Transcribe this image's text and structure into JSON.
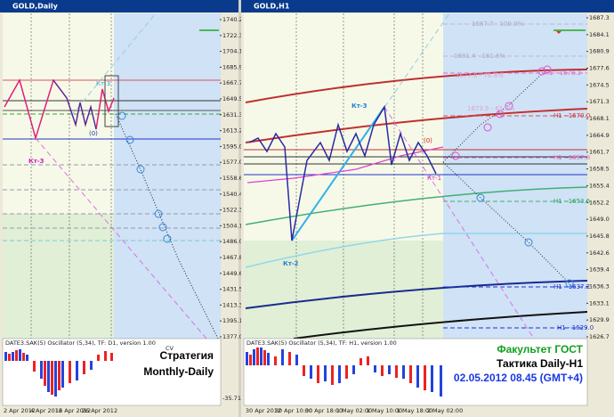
{
  "left_window": {
    "title": "GOLD,Daily",
    "y_axis": [
      "1740.2",
      "1722.3",
      "1704.1",
      "1685.9",
      "1667.7",
      "1649.5",
      "1631.3",
      "1613.2",
      "1595.0",
      "1577.0",
      "1558.6",
      "1540.4",
      "1522.3",
      "1504.1",
      "1486.0",
      "1467.8",
      "1449.6",
      "1431.5",
      "1413.3",
      "1395.1",
      "1377.0"
    ],
    "x_axis": [
      "2 Apr 2012",
      "4 Apr 2012",
      "16 Apr 2012",
      "26 Apr 2012"
    ],
    "labels": {
      "kt3": "Кт-3",
      "kt3_top": "Кт-3",
      "zero": "(0)"
    },
    "oscillator": {
      "label": "DATE3.SAK(5) Oscillator (5,34), TF: D1, version 1.00",
      "scale_top": "CV",
      "scale_bottom": "-35.71"
    },
    "caption": [
      "Стратегия",
      "Monthly-Daily"
    ]
  },
  "right_window": {
    "title": "GOLD,H1",
    "y_axis": [
      "1687.3",
      "1684.1",
      "1680.9",
      "1677.6",
      "1674.5",
      "1671.3",
      "1668.1",
      "1664.9",
      "1661.7",
      "1658.5",
      "1655.4",
      "1652.2",
      "1649.0",
      "1645.8",
      "1642.6",
      "1639.4",
      "1636.3",
      "1633.1",
      "1629.9",
      "1626.7"
    ],
    "x_axis": [
      "30 Apr 2012",
      "30 Apr 10:00",
      "30 Apr 18:00",
      "1 May 02:00",
      "1 May 10:00",
      "1 May 18:00",
      "2 May 02:00"
    ],
    "labels": {
      "kt3": "Кт-3",
      "kt2": "Кт-2",
      "kt1": "Кт-1",
      "zero": "(0)"
    },
    "levels": [
      "H1 - 1678.2",
      "H1 - 1670.0",
      "H1 - 1657.8",
      "H1 - 1653.6",
      "H1 - 1637.2",
      "H1 - 1629.0"
    ],
    "fibo": [
      "1687.7 - 100.0%",
      "1681.4 - 161.8%",
      "1677.8 - 76.4%",
      "1673.5 - 61.8%"
    ],
    "oscillator": {
      "label": "DATE3.SAK(5) Oscillator (5,34), TF: H1, version 1.00"
    },
    "caption": [
      "Факультет ГОСТ",
      "Тактика Daily-H1",
      "02.05.2012 08.45 (GMT+4)"
    ]
  }
}
